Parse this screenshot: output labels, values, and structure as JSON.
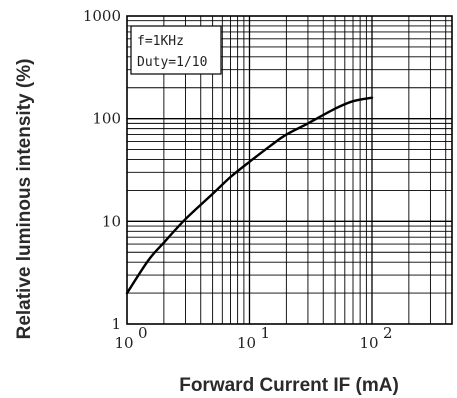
{
  "chart_data": {
    "type": "line",
    "title": "",
    "xlabel": "Forward Current IF (mA)",
    "ylabel": "Relative luminous intensity (%)",
    "x_scale": "log",
    "y_scale": "log",
    "xlim": [
      1,
      450
    ],
    "ylim": [
      1,
      1000
    ],
    "x_ticks": [
      {
        "value": 1,
        "base": "10",
        "exp": "0"
      },
      {
        "value": 10,
        "base": "10",
        "exp": "1"
      },
      {
        "value": 100,
        "base": "10",
        "exp": "2"
      }
    ],
    "y_ticks": [
      {
        "value": 1,
        "label": "1"
      },
      {
        "value": 10,
        "label": "10"
      },
      {
        "value": 100,
        "label": "100"
      },
      {
        "value": 1000,
        "label": "1000"
      }
    ],
    "grid": true,
    "legend_box": [
      "f=1KHz",
      "Duty=1/10"
    ],
    "series": [
      {
        "color": "#000000",
        "x": [
          1,
          1.5,
          2,
          3,
          5,
          7,
          10,
          15,
          20,
          30,
          50,
          70,
          100
        ],
        "y": [
          2,
          4.2,
          6.2,
          10.5,
          18.5,
          27,
          38,
          55,
          70,
          90,
          125,
          148,
          160
        ]
      }
    ]
  },
  "labels": {
    "ylabel": "Relative luminous intensity (%)",
    "xlabel": "Forward Current IF (mA)"
  }
}
